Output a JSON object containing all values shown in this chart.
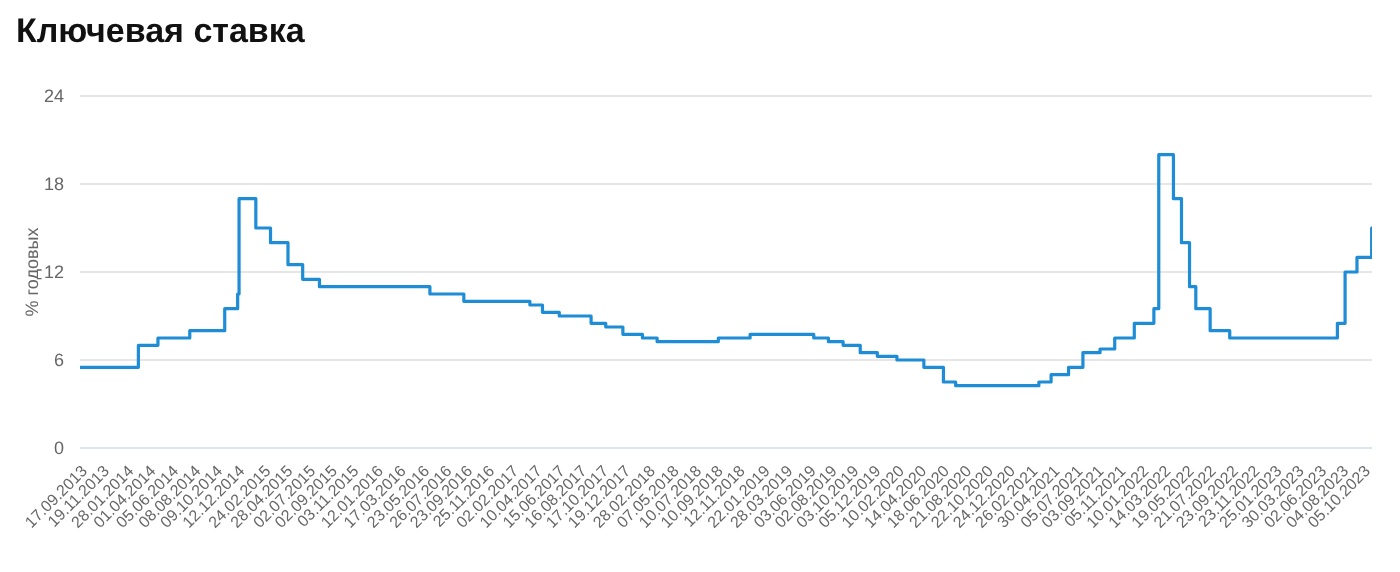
{
  "chart_data": {
    "type": "step",
    "title": "Ключевая ставка",
    "ylabel": "% годовых",
    "x": [
      "2013-09-17",
      "2014-03-03",
      "2014-04-28",
      "2014-07-28",
      "2014-11-05",
      "2014-12-12",
      "2014-12-16",
      "2015-02-02",
      "2015-03-16",
      "2015-05-05",
      "2015-06-16",
      "2015-08-03",
      "2016-06-14",
      "2016-09-19",
      "2017-03-27",
      "2017-05-02",
      "2017-06-19",
      "2017-09-18",
      "2017-10-30",
      "2017-12-18",
      "2018-02-12",
      "2018-03-26",
      "2018-09-17",
      "2018-12-17",
      "2019-06-17",
      "2019-07-29",
      "2019-09-09",
      "2019-10-28",
      "2019-12-16",
      "2020-02-10",
      "2020-04-27",
      "2020-06-22",
      "2020-07-27",
      "2021-03-22",
      "2021-04-26",
      "2021-06-15",
      "2021-07-26",
      "2021-09-13",
      "2021-10-25",
      "2021-12-20",
      "2022-02-14",
      "2022-02-28",
      "2022-04-11",
      "2022-05-04",
      "2022-05-27",
      "2022-06-14",
      "2022-07-25",
      "2022-09-19",
      "2023-07-24",
      "2023-08-15",
      "2023-09-18",
      "2023-10-30",
      "2023-10-31"
    ],
    "series": [
      {
        "color": "#1f8dd6",
        "values": [
          5.5,
          7,
          7.5,
          8,
          9.5,
          10.5,
          17,
          15,
          14,
          12.5,
          11.5,
          11,
          10.5,
          10,
          9.75,
          9.25,
          9,
          8.5,
          8.25,
          7.75,
          7.5,
          7.25,
          7.5,
          7.75,
          7.5,
          7.25,
          7,
          6.5,
          6.25,
          6,
          5.5,
          4.5,
          4.25,
          4.5,
          5,
          5.5,
          6.5,
          6.75,
          7.5,
          8.5,
          9.5,
          20,
          17,
          14,
          11,
          9.5,
          8,
          7.5,
          8.5,
          12,
          13,
          15,
          15
        ]
      }
    ],
    "xlim": [
      "2013-09-17",
      "2023-10-31"
    ],
    "xticks": [
      {
        "value": "2013-09-17",
        "label": "17.09.2013"
      },
      {
        "value": "2013-11-19",
        "label": "19.11.2013"
      },
      {
        "value": "2014-01-28",
        "label": "28.01.2014"
      },
      {
        "value": "2014-04-01",
        "label": "01.04.2014"
      },
      {
        "value": "2014-06-05",
        "label": "05.06.2014"
      },
      {
        "value": "2014-08-08",
        "label": "08.08.2014"
      },
      {
        "value": "2014-10-09",
        "label": "09.10.2014"
      },
      {
        "value": "2014-12-12",
        "label": "12.12.2014"
      },
      {
        "value": "2015-02-24",
        "label": "24.02.2015"
      },
      {
        "value": "2015-04-28",
        "label": "28.04.2015"
      },
      {
        "value": "2015-07-02",
        "label": "02.07.2015"
      },
      {
        "value": "2015-09-02",
        "label": "02.09.2015"
      },
      {
        "value": "2015-11-03",
        "label": "03.11.2015"
      },
      {
        "value": "2016-01-12",
        "label": "12.01.2016"
      },
      {
        "value": "2016-03-17",
        "label": "17.03.2016"
      },
      {
        "value": "2016-05-23",
        "label": "23.05.2016"
      },
      {
        "value": "2016-07-26",
        "label": "26.07.2016"
      },
      {
        "value": "2016-09-23",
        "label": "23.09.2016"
      },
      {
        "value": "2016-11-25",
        "label": "25.11.2016"
      },
      {
        "value": "2017-02-02",
        "label": "02.02.2017"
      },
      {
        "value": "2017-04-10",
        "label": "10.04.2017"
      },
      {
        "value": "2017-06-15",
        "label": "15.06.2017"
      },
      {
        "value": "2017-08-16",
        "label": "16.08.2017"
      },
      {
        "value": "2017-10-17",
        "label": "17.10.2017"
      },
      {
        "value": "2017-12-19",
        "label": "19.12.2017"
      },
      {
        "value": "2018-02-28",
        "label": "28.02.2018"
      },
      {
        "value": "2018-05-07",
        "label": "07.05.2018"
      },
      {
        "value": "2018-07-10",
        "label": "10.07.2018"
      },
      {
        "value": "2018-09-10",
        "label": "10.09.2018"
      },
      {
        "value": "2018-11-12",
        "label": "12.11.2018"
      },
      {
        "value": "2019-01-22",
        "label": "22.01.2019"
      },
      {
        "value": "2019-03-28",
        "label": "28.03.2019"
      },
      {
        "value": "2019-06-03",
        "label": "03.06.2019"
      },
      {
        "value": "2019-08-02",
        "label": "02.08.2019"
      },
      {
        "value": "2019-10-03",
        "label": "03.10.2019"
      },
      {
        "value": "2019-12-05",
        "label": "05.12.2019"
      },
      {
        "value": "2020-02-10",
        "label": "10.02.2020"
      },
      {
        "value": "2020-04-14",
        "label": "14.04.2020"
      },
      {
        "value": "2020-06-18",
        "label": "18.06.2020"
      },
      {
        "value": "2020-08-21",
        "label": "21.08.2020"
      },
      {
        "value": "2020-10-22",
        "label": "22.10.2020"
      },
      {
        "value": "2020-12-24",
        "label": "24.12.2020"
      },
      {
        "value": "2021-02-26",
        "label": "26.02.2021"
      },
      {
        "value": "2021-04-30",
        "label": "30.04.2021"
      },
      {
        "value": "2021-07-05",
        "label": "05.07.2021"
      },
      {
        "value": "2021-09-03",
        "label": "03.09.2021"
      },
      {
        "value": "2021-11-05",
        "label": "05.11.2021"
      },
      {
        "value": "2022-01-10",
        "label": "10.01.2022"
      },
      {
        "value": "2022-03-14",
        "label": "14.03.2022"
      },
      {
        "value": "2022-05-19",
        "label": "19.05.2022"
      },
      {
        "value": "2022-07-21",
        "label": "21.07.2022"
      },
      {
        "value": "2022-09-23",
        "label": "23.09.2022"
      },
      {
        "value": "2022-11-23",
        "label": "23.11.2022"
      },
      {
        "value": "2023-01-25",
        "label": "25.01.2023"
      },
      {
        "value": "2023-03-30",
        "label": "30.03.2023"
      },
      {
        "value": "2023-06-02",
        "label": "02.06.2023"
      },
      {
        "value": "2023-08-04",
        "label": "04.08.2023"
      },
      {
        "value": "2023-10-05",
        "label": "05.10.2023"
      }
    ],
    "ylim": [
      0,
      24
    ],
    "yticks": [
      0,
      6,
      12,
      18,
      24
    ],
    "grid": "y",
    "legend": false,
    "marker": "none",
    "line_style": "solid"
  }
}
